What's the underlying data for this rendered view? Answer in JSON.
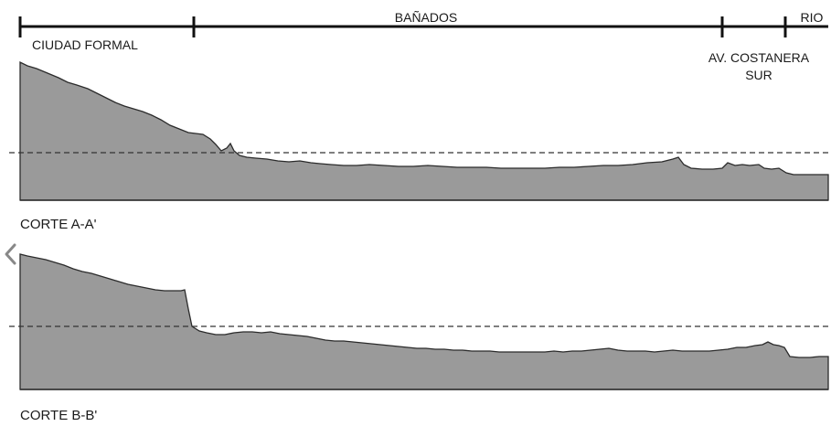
{
  "zones": [
    {
      "label_lines": [
        "CIUDAD FORMAL"
      ]
    },
    {
      "label_lines": [
        "BAÑADOS"
      ]
    },
    {
      "label_lines": [
        "AV. COSTANERA",
        "SUR"
      ]
    },
    {
      "label_lines": [
        "RIO"
      ]
    }
  ],
  "sections": [
    {
      "label": "CORTE A-A'"
    },
    {
      "label": "CORTE B-B'"
    }
  ],
  "icons": {
    "back": "chevron-left-icon"
  }
}
